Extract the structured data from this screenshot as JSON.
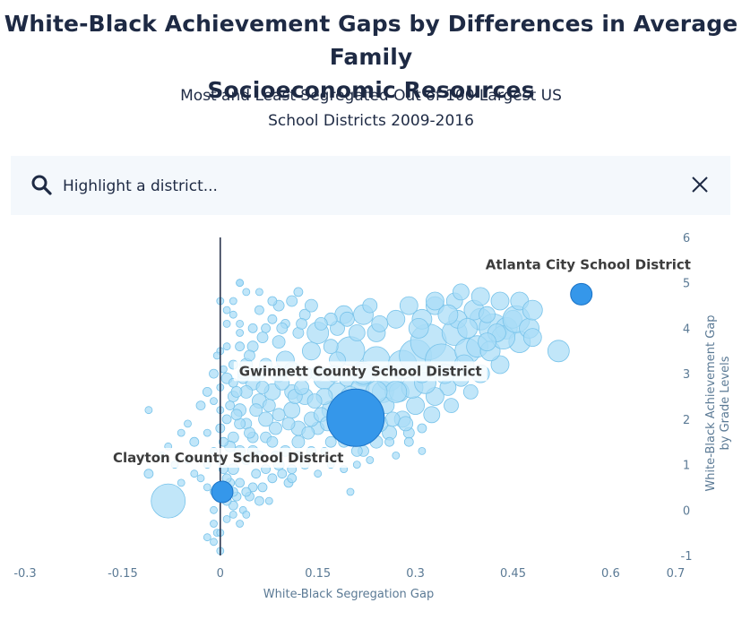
{
  "title_line1": "White-Black Achievement Gaps by Differences in Average Family",
  "title_line2": "Socioeconomic Resources",
  "subtitle_line1": "Most and Least Segregated Out of 100 Largest US",
  "subtitle_line2": "School Districts 2009-2016",
  "search": {
    "placeholder": "Highlight a district...",
    "search_icon": "search-icon",
    "close_icon": "close-icon"
  },
  "colors": {
    "bubble_fill": "#a9dcf6",
    "bubble_stroke": "#78c3ea",
    "highlight_fill": "#3597ea",
    "highlight_stroke": "#1a73c7",
    "axis_text": "#5b7a95"
  },
  "chart_data": {
    "type": "scatter",
    "title": "White-Black Achievement Gaps by Differences in Average Family Socioeconomic Resources",
    "subtitle": "Most and Least Segregated Out of 100 Largest US School Districts 2009-2016",
    "xlabel": "White-Black Segregation Gap",
    "ylabel_line1": "White-Black Achievement Gap",
    "ylabel_line2": "by Grade Levels",
    "xlim": [
      -0.3,
      0.7
    ],
    "ylim": [
      -1,
      6
    ],
    "xticks": [
      "-0.3",
      "-0.15",
      "0",
      "0.15",
      "0.3",
      "0.45",
      "0.6",
      "0.7"
    ],
    "xtick_values": [
      -0.3,
      -0.15,
      0,
      0.15,
      0.3,
      0.45,
      0.6,
      0.7
    ],
    "yticks": [
      "6",
      "5",
      "4",
      "3",
      "2",
      "1",
      "0",
      "-1"
    ],
    "ytick_values": [
      6,
      5,
      4,
      3,
      2,
      1,
      0,
      -1
    ],
    "grid": false,
    "highlighted": [
      {
        "label": "Atlanta City School District",
        "x": 0.555,
        "y": 4.75,
        "size": 12
      },
      {
        "label": "Gwinnett County School District",
        "x": 0.208,
        "y": 2.03,
        "size": 32
      },
      {
        "label": "Clayton County School District",
        "x": 0.003,
        "y": 0.4,
        "size": 12
      }
    ],
    "points": [
      [
        -0.08,
        0.2,
        19
      ],
      [
        -0.11,
        0.8,
        5
      ],
      [
        -0.11,
        2.2,
        4
      ],
      [
        -0.09,
        1.2,
        4
      ],
      [
        -0.08,
        1.4,
        4
      ],
      [
        -0.07,
        1.0,
        4
      ],
      [
        -0.06,
        1.7,
        4
      ],
      [
        -0.05,
        1.9,
        4
      ],
      [
        -0.04,
        1.5,
        5
      ],
      [
        -0.03,
        2.3,
        5
      ],
      [
        -0.02,
        0.5,
        4
      ],
      [
        -0.01,
        0.0,
        4
      ],
      [
        -0.005,
        -0.5,
        4
      ],
      [
        0.0,
        -0.9,
        4
      ],
      [
        0.0,
        4.6,
        4
      ],
      [
        0.01,
        4.4,
        4
      ],
      [
        0.02,
        4.3,
        4
      ],
      [
        0.03,
        3.9,
        4
      ],
      [
        0.0,
        3.5,
        4
      ],
      [
        -0.01,
        3.0,
        5
      ],
      [
        -0.02,
        2.6,
        5
      ],
      [
        0.01,
        2.9,
        6
      ],
      [
        0.02,
        2.5,
        6
      ],
      [
        0.03,
        2.2,
        7
      ],
      [
        0.04,
        1.9,
        6
      ],
      [
        0.05,
        1.6,
        6
      ],
      [
        0.06,
        1.2,
        5
      ],
      [
        0.07,
        0.9,
        5
      ],
      [
        0.08,
        0.7,
        5
      ],
      [
        0.02,
        0.9,
        6
      ],
      [
        0.03,
        1.3,
        6
      ],
      [
        0.04,
        1.1,
        5
      ],
      [
        0.05,
        0.5,
        5
      ],
      [
        0.06,
        0.2,
        5
      ],
      [
        0.01,
        -0.2,
        4
      ],
      [
        0.02,
        0.1,
        5
      ],
      [
        0.03,
        -0.3,
        4
      ],
      [
        0.04,
        3.2,
        7
      ],
      [
        0.05,
        2.8,
        8
      ],
      [
        0.06,
        2.4,
        8
      ],
      [
        0.07,
        2.0,
        8
      ],
      [
        0.08,
        2.6,
        9
      ],
      [
        0.09,
        3.0,
        9
      ],
      [
        0.1,
        3.3,
        10
      ],
      [
        0.11,
        2.2,
        9
      ],
      [
        0.12,
        1.8,
        8
      ],
      [
        0.13,
        2.5,
        9
      ],
      [
        0.14,
        3.5,
        10
      ],
      [
        0.15,
        3.9,
        12
      ],
      [
        0.16,
        2.9,
        12
      ],
      [
        0.17,
        2.2,
        10
      ],
      [
        0.12,
        3.9,
        6
      ],
      [
        0.13,
        4.3,
        6
      ],
      [
        0.1,
        4.1,
        5
      ],
      [
        0.08,
        4.2,
        5
      ],
      [
        0.06,
        4.4,
        5
      ],
      [
        0.04,
        4.8,
        4
      ],
      [
        0.03,
        5.0,
        4
      ],
      [
        0.14,
        4.5,
        7
      ],
      [
        0.18,
        4.0,
        8
      ],
      [
        0.2,
        3.5,
        16
      ],
      [
        0.22,
        3.0,
        14
      ],
      [
        0.24,
        3.3,
        15
      ],
      [
        0.25,
        2.6,
        12
      ],
      [
        0.26,
        2.9,
        14
      ],
      [
        0.28,
        3.2,
        16
      ],
      [
        0.3,
        3.4,
        18
      ],
      [
        0.32,
        3.7,
        20
      ],
      [
        0.34,
        3.3,
        18
      ],
      [
        0.36,
        3.9,
        14
      ],
      [
        0.38,
        3.5,
        14
      ],
      [
        0.4,
        4.2,
        12
      ],
      [
        0.42,
        4.0,
        16
      ],
      [
        0.44,
        4.0,
        12
      ],
      [
        0.46,
        3.7,
        12
      ],
      [
        0.43,
        3.2,
        10
      ],
      [
        0.4,
        3.0,
        10
      ],
      [
        0.37,
        2.9,
        9
      ],
      [
        0.35,
        2.7,
        9
      ],
      [
        0.33,
        2.5,
        10
      ],
      [
        0.3,
        2.3,
        10
      ],
      [
        0.28,
        2.0,
        9
      ],
      [
        0.26,
        1.7,
        8
      ],
      [
        0.24,
        1.5,
        7
      ],
      [
        0.22,
        1.3,
        6
      ],
      [
        0.26,
        1.5,
        5
      ],
      [
        0.29,
        1.7,
        6
      ],
      [
        0.31,
        1.8,
        5
      ],
      [
        0.27,
        4.2,
        10
      ],
      [
        0.29,
        4.5,
        10
      ],
      [
        0.31,
        4.2,
        11
      ],
      [
        0.33,
        4.5,
        10
      ],
      [
        0.36,
        4.6,
        9
      ],
      [
        0.39,
        4.4,
        11
      ],
      [
        0.41,
        4.3,
        9
      ],
      [
        0.45,
        4.2,
        10
      ],
      [
        0.52,
        3.5,
        12
      ],
      [
        0.22,
        4.3,
        11
      ],
      [
        0.19,
        4.3,
        10
      ],
      [
        0.21,
        3.9,
        9
      ],
      [
        0.17,
        3.6,
        8
      ],
      [
        0.15,
        3.0,
        8
      ],
      [
        0.11,
        2.6,
        8
      ],
      [
        0.09,
        2.1,
        7
      ],
      [
        0.07,
        1.6,
        6
      ],
      [
        0.05,
        1.3,
        6
      ],
      [
        0.03,
        3.6,
        5
      ],
      [
        0.02,
        3.2,
        5
      ],
      [
        0.01,
        3.6,
        4
      ],
      [
        0.05,
        3.6,
        6
      ],
      [
        0.07,
        3.2,
        7
      ],
      [
        0.09,
        3.7,
        7
      ],
      [
        0.11,
        3.1,
        8
      ],
      [
        0.13,
        3.0,
        8
      ],
      [
        0.15,
        1.8,
        7
      ],
      [
        0.17,
        1.5,
        6
      ],
      [
        0.19,
        1.5,
        6
      ],
      [
        0.21,
        1.3,
        6
      ],
      [
        0.18,
        2.6,
        10
      ],
      [
        0.16,
        2.5,
        9
      ],
      [
        0.14,
        2.0,
        8
      ],
      [
        0.12,
        1.5,
        7
      ],
      [
        0.1,
        1.3,
        6
      ],
      [
        0.09,
        1.0,
        6
      ],
      [
        0.11,
        0.9,
        5
      ],
      [
        0.13,
        1.0,
        5
      ],
      [
        0.15,
        0.8,
        4
      ],
      [
        0.2,
        0.4,
        4
      ],
      [
        0.05,
        4.0,
        5
      ],
      [
        0.07,
        4.0,
        5
      ],
      [
        0.09,
        4.5,
        6
      ],
      [
        0.11,
        4.6,
        6
      ],
      [
        0.17,
        4.2,
        7
      ],
      [
        0.23,
        4.5,
        8
      ],
      [
        0.18,
        3.3,
        9
      ],
      [
        0.24,
        3.9,
        10
      ],
      [
        0.01,
        0.2,
        5
      ],
      [
        0.02,
        1.6,
        6
      ],
      [
        0.03,
        1.9,
        6
      ],
      [
        0.04,
        2.6,
        7
      ],
      [
        0.01,
        2.0,
        5
      ],
      [
        0.02,
        2.8,
        5
      ],
      [
        0.03,
        4.1,
        4
      ],
      [
        0.06,
        3.0,
        7
      ],
      [
        0.08,
        1.5,
        6
      ],
      [
        -0.01,
        1.3,
        4
      ],
      [
        -0.02,
        1.0,
        4
      ],
      [
        -0.03,
        0.7,
        4
      ],
      [
        -0.01,
        0.4,
        4
      ],
      [
        -0.04,
        0.8,
        4
      ],
      [
        -0.05,
        1.1,
        4
      ],
      [
        -0.06,
        0.6,
        4
      ],
      [
        -0.02,
        1.7,
        4
      ],
      [
        -0.01,
        2.4,
        4
      ],
      [
        0.0,
        2.7,
        4
      ],
      [
        0.0,
        1.8,
        5
      ],
      [
        0.0,
        1.1,
        5
      ],
      [
        0.015,
        1.4,
        6
      ],
      [
        0.025,
        2.1,
        6
      ],
      [
        0.035,
        2.9,
        6
      ],
      [
        0.045,
        1.7,
        6
      ],
      [
        0.055,
        2.2,
        7
      ],
      [
        0.065,
        2.7,
        7
      ],
      [
        0.075,
        2.3,
        7
      ],
      [
        0.085,
        1.8,
        7
      ],
      [
        0.095,
        2.8,
        8
      ],
      [
        0.105,
        1.9,
        7
      ],
      [
        0.115,
        2.5,
        8
      ],
      [
        0.125,
        2.7,
        8
      ],
      [
        0.135,
        1.7,
        7
      ],
      [
        0.145,
        2.4,
        8
      ],
      [
        0.155,
        2.1,
        8
      ],
      [
        0.165,
        1.9,
        8
      ],
      [
        0.175,
        3.0,
        9
      ],
      [
        0.185,
        1.8,
        8
      ],
      [
        0.195,
        2.9,
        9
      ],
      [
        0.215,
        2.7,
        10
      ],
      [
        0.235,
        2.2,
        9
      ],
      [
        0.245,
        1.9,
        9
      ],
      [
        0.255,
        2.3,
        9
      ],
      [
        0.265,
        2.0,
        8
      ],
      [
        0.275,
        2.6,
        11
      ],
      [
        0.285,
        1.9,
        8
      ],
      [
        0.295,
        2.7,
        12
      ],
      [
        0.315,
        2.8,
        12
      ],
      [
        0.325,
        2.1,
        9
      ],
      [
        0.345,
        3.0,
        11
      ],
      [
        0.355,
        2.3,
        8
      ],
      [
        0.375,
        3.2,
        11
      ],
      [
        0.385,
        2.6,
        8
      ],
      [
        0.395,
        3.6,
        12
      ],
      [
        0.415,
        3.5,
        11
      ],
      [
        0.435,
        3.8,
        13
      ],
      [
        0.455,
        4.2,
        15
      ],
      [
        0.475,
        4.0,
        11
      ],
      [
        0.425,
        3.9,
        10
      ],
      [
        0.365,
        4.2,
        10
      ],
      [
        0.305,
        4.0,
        11
      ],
      [
        0.245,
        4.1,
        9
      ],
      [
        0.195,
        4.2,
        8
      ],
      [
        0.155,
        4.1,
        7
      ],
      [
        0.125,
        4.1,
        6
      ],
      [
        0.095,
        4.0,
        6
      ],
      [
        0.065,
        3.8,
        6
      ],
      [
        0.045,
        3.4,
        6
      ],
      [
        0.035,
        3.0,
        6
      ],
      [
        0.025,
        2.6,
        6
      ],
      [
        0.015,
        2.3,
        5
      ],
      [
        0.005,
        1.5,
        5
      ],
      [
        0.005,
        0.9,
        5
      ],
      [
        0.015,
        0.6,
        5
      ],
      [
        0.025,
        0.3,
        5
      ],
      [
        0.035,
        0.0,
        4
      ],
      [
        0.045,
        0.3,
        5
      ],
      [
        0.055,
        0.8,
        5
      ],
      [
        0.065,
        0.5,
        5
      ],
      [
        0.075,
        0.2,
        4
      ],
      [
        0.085,
        1.2,
        5
      ],
      [
        0.095,
        0.8,
        5
      ],
      [
        0.105,
        0.6,
        5
      ],
      [
        0.11,
        0.7,
        5
      ],
      [
        0.03,
        0.6,
        5
      ],
      [
        0.04,
        0.4,
        5
      ],
      [
        0.02,
        0.4,
        5
      ],
      [
        0.01,
        0.7,
        5
      ],
      [
        0.02,
        -0.1,
        4
      ],
      [
        0.04,
        -0.1,
        4
      ],
      [
        -0.01,
        -0.3,
        4
      ],
      [
        -0.02,
        -0.6,
        4
      ],
      [
        -0.01,
        -0.7,
        4
      ],
      [
        0.0,
        -0.5,
        4
      ],
      [
        0.06,
        4.8,
        4
      ],
      [
        0.08,
        4.6,
        5
      ],
      [
        0.12,
        4.8,
        5
      ],
      [
        0.03,
        5.0,
        4
      ],
      [
        0.02,
        4.6,
        4
      ],
      [
        0.01,
        4.1,
        4
      ],
      [
        0.005,
        3.1,
        4
      ],
      [
        -0.005,
        3.4,
        4
      ],
      [
        0.0,
        2.2,
        4
      ],
      [
        0.33,
        4.6,
        10
      ],
      [
        0.37,
        4.8,
        9
      ],
      [
        0.4,
        4.7,
        10
      ],
      [
        0.43,
        4.6,
        10
      ],
      [
        0.46,
        4.6,
        10
      ],
      [
        0.48,
        4.4,
        11
      ],
      [
        0.48,
        3.8,
        10
      ],
      [
        0.41,
        3.7,
        10
      ],
      [
        0.38,
        4.0,
        11
      ],
      [
        0.35,
        4.3,
        11
      ],
      [
        0.31,
        3.0,
        10
      ],
      [
        0.27,
        2.6,
        12
      ],
      [
        0.24,
        2.6,
        12
      ],
      [
        0.22,
        3.0,
        12
      ],
      [
        0.2,
        2.5,
        11
      ],
      [
        0.29,
        1.5,
        5
      ],
      [
        0.31,
        1.3,
        4
      ],
      [
        0.27,
        1.2,
        4
      ],
      [
        0.23,
        1.1,
        4
      ],
      [
        0.21,
        1.0,
        4
      ],
      [
        0.19,
        0.9,
        4
      ],
      [
        0.17,
        1.0,
        4
      ],
      [
        0.16,
        1.3,
        4
      ],
      [
        0.14,
        1.3,
        5
      ],
      [
        0.12,
        1.2,
        5
      ]
    ]
  }
}
